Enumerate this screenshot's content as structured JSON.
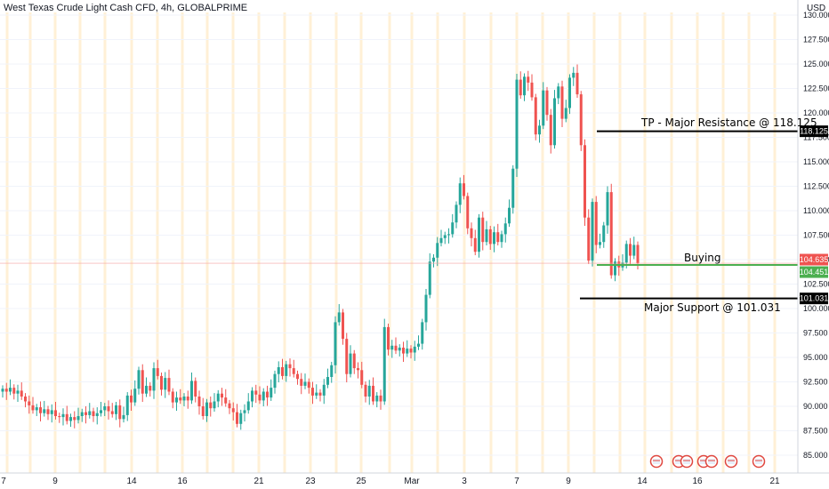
{
  "header": {
    "title": "West Texas Crude Light Cash CFD, 4h, GLOBALPRIME",
    "currency": "USD"
  },
  "annotations": {
    "resistance": "TP - Major Resistance @ 118.125",
    "support": "Major Support @ 101.031",
    "buying": "Buying"
  },
  "colors": {
    "up": "#26a69a",
    "down": "#ef5350",
    "entry_line": "#4caf50",
    "level_line": "#000000",
    "session_stripe": "#fff0d6"
  },
  "chart_data": {
    "type": "candlestick",
    "title": "West Texas Crude Light Cash CFD, 4h, GLOBALPRIME",
    "ylabel": "USD",
    "ylim": [
      84,
      130
    ],
    "y_ticks": [
      "85.000",
      "87.500",
      "90.000",
      "92.500",
      "95.000",
      "97.500",
      "100.000",
      "102.500",
      "105.000",
      "107.500",
      "110.000",
      "112.500",
      "115.000",
      "117.500",
      "120.000",
      "122.500",
      "125.000",
      "127.500",
      "130.000"
    ],
    "x_ticks": [
      "7",
      "9",
      "14",
      "16",
      "21",
      "23",
      "25",
      "Mar",
      "3",
      "7",
      "9",
      "14",
      "16",
      "21"
    ],
    "levels": [
      {
        "label": "TP - Major Resistance @ 118.125",
        "value": 118.125,
        "tag": "118.125"
      },
      {
        "label": "Major Support @ 101.031",
        "value": 101.031,
        "tag": "101.031"
      },
      {
        "label": "Buying",
        "value": 104.451,
        "tag": "104.451"
      }
    ],
    "last_price": "104.635",
    "closes": [
      91.8,
      91.5,
      91.9,
      91.3,
      91.6,
      91.0,
      90.5,
      90.1,
      89.6,
      89.9,
      89.3,
      89.7,
      89.2,
      89.6,
      89.0,
      88.9,
      89.2,
      88.5,
      88.9,
      88.6,
      89.0,
      89.4,
      89.1,
      89.5,
      89.0,
      89.3,
      89.6,
      90.0,
      89.5,
      89.2,
      90.1,
      88.7,
      89.1,
      91.1,
      90.4,
      91.8,
      93.7,
      91.3,
      92.1,
      91.6,
      93.9,
      93.1,
      91.7,
      92.9,
      91.5,
      90.4,
      90.9,
      90.6,
      91.0,
      90.6,
      92.6,
      91.0,
      90.0,
      89.0,
      90.4,
      89.8,
      90.5,
      91.3,
      90.9,
      90.3,
      89.8,
      89.4,
      88.2,
      89.3,
      89.6,
      90.5,
      91.6,
      91.2,
      90.6,
      91.5,
      90.9,
      91.9,
      93.3,
      94.0,
      93.1,
      94.3,
      93.9,
      93.3,
      92.8,
      92.1,
      92.5,
      91.9,
      91.1,
      91.4,
      91.1,
      92.2,
      93.0,
      94.2,
      98.6,
      99.6,
      96.9,
      93.3,
      95.4,
      93.9,
      93.7,
      92.2,
      91.0,
      92.1,
      90.5,
      91.1,
      90.5,
      98.1,
      95.8,
      96.2,
      95.7,
      96.0,
      95.4,
      95.9,
      95.5,
      96.1,
      96.4,
      98.6,
      101.4,
      104.8,
      105.2,
      106.7,
      107.2,
      107.5,
      107.6,
      108.8,
      110.6,
      112.8,
      111.5,
      108.2,
      107.2,
      105.8,
      109.3,
      106.8,
      108.1,
      106.6,
      107.8,
      106.8,
      107.6,
      108.7,
      110.3,
      114.3,
      123.4,
      121.8,
      123.7,
      123.1,
      121.6,
      117.8,
      118.7,
      122.3,
      119.8,
      116.7,
      121.5,
      122.7,
      119.4,
      120.5,
      123.6,
      124.1,
      121.9,
      116.7,
      109.3,
      104.9,
      110.9,
      106.5,
      106.8,
      108.5,
      111.9,
      103.4,
      104.8,
      104.2,
      104.7,
      106.6,
      105.4,
      106.5,
      104.6
    ],
    "markers": [
      8
    ]
  }
}
